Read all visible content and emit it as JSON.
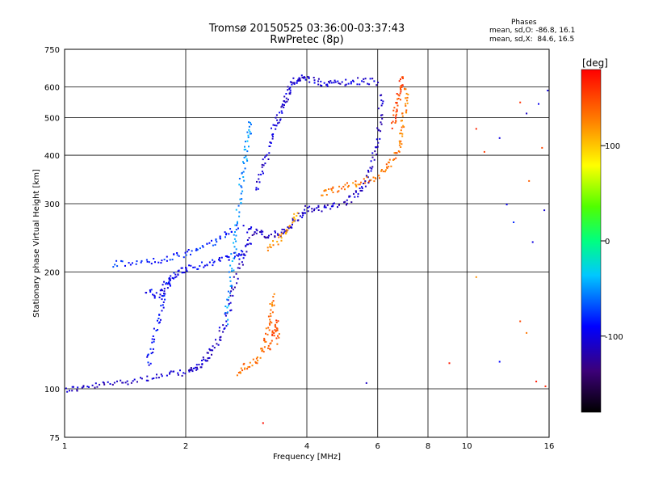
{
  "header": {
    "title": "Tromsø 20150525 03:36:00-03:37:43",
    "subtitle": "RwPretec (8p)"
  },
  "phase_stats": {
    "heading": "Phases",
    "line_o": "mean, sd,O: -86.8, 16.1",
    "line_x": "mean, sd,X:  84.6, 16.5"
  },
  "chart_data": {
    "type": "scatter",
    "xlabel": "Frequency [MHz]",
    "ylabel": "Stationary phase Virtual Height [km]",
    "x_scale": "log",
    "y_scale": "log",
    "xlim": [
      1,
      16
    ],
    "ylim": [
      75,
      750
    ],
    "x_ticks": [
      1,
      2,
      4,
      6,
      8,
      10,
      16
    ],
    "y_ticks": [
      75,
      100,
      200,
      300,
      400,
      500,
      600,
      750
    ],
    "x_tick_labels": [
      "1",
      "2",
      "4",
      "6",
      "8",
      "10",
      "16"
    ],
    "y_tick_labels": [
      "75",
      "100",
      "200",
      "300",
      "400",
      "500",
      "600",
      "750"
    ],
    "grid": true,
    "colorbar": {
      "label": "[deg]",
      "range": [
        -180,
        180
      ],
      "ticks": [
        100,
        0,
        -100
      ],
      "tick_labels": [
        "100",
        "0",
        "-100"
      ],
      "colormap": "rainbow"
    },
    "traces": [
      {
        "points": [
          [
            1.0,
            100
          ],
          [
            1.1,
            101
          ],
          [
            1.25,
            103
          ],
          [
            1.4,
            105
          ],
          [
            1.6,
            107
          ],
          [
            1.8,
            109
          ],
          [
            2.0,
            111
          ],
          [
            2.1,
            113
          ],
          [
            2.2,
            118
          ],
          [
            2.3,
            125
          ],
          [
            2.4,
            135
          ],
          [
            2.5,
            150
          ],
          [
            2.6,
            175
          ],
          [
            2.7,
            205
          ],
          [
            2.8,
            230
          ],
          [
            2.9,
            250
          ]
        ],
        "phase": -110
      },
      {
        "points": [
          [
            1.6,
            180
          ],
          [
            1.7,
            175
          ],
          [
            1.8,
            190
          ],
          [
            1.9,
            200
          ],
          [
            2.0,
            205
          ],
          [
            2.2,
            210
          ],
          [
            2.4,
            215
          ],
          [
            2.6,
            220
          ],
          [
            2.8,
            225
          ]
        ],
        "phase": -95
      },
      {
        "points": [
          [
            1.3,
            210
          ],
          [
            1.5,
            212
          ],
          [
            1.7,
            215
          ],
          [
            1.9,
            220
          ],
          [
            2.1,
            228
          ],
          [
            2.3,
            238
          ],
          [
            2.5,
            250
          ],
          [
            2.7,
            265
          ]
        ],
        "phase": -80
      },
      {
        "points": [
          [
            2.5,
            150
          ],
          [
            2.55,
            180
          ],
          [
            2.6,
            210
          ],
          [
            2.65,
            250
          ],
          [
            2.7,
            300
          ],
          [
            2.75,
            350
          ],
          [
            2.8,
            400
          ],
          [
            2.85,
            450
          ],
          [
            2.9,
            500
          ]
        ],
        "phase": -50
      },
      {
        "points": [
          [
            1.6,
            115
          ],
          [
            1.65,
            130
          ],
          [
            1.7,
            150
          ],
          [
            1.75,
            170
          ],
          [
            1.8,
            185
          ],
          [
            1.85,
            200
          ]
        ],
        "phase": -90
      },
      {
        "points": [
          [
            2.8,
            260
          ],
          [
            3.0,
            255
          ],
          [
            3.2,
            250
          ],
          [
            3.4,
            252
          ],
          [
            3.6,
            262
          ],
          [
            3.8,
            280
          ],
          [
            4.0,
            292
          ],
          [
            4.3,
            293
          ],
          [
            4.6,
            295
          ],
          [
            5.0,
            305
          ],
          [
            5.3,
            320
          ],
          [
            5.6,
            345
          ],
          [
            5.8,
            380
          ],
          [
            5.95,
            430
          ],
          [
            6.05,
            500
          ],
          [
            6.1,
            580
          ]
        ],
        "phase": -110
      },
      {
        "points": [
          [
            3.0,
            330
          ],
          [
            3.1,
            370
          ],
          [
            3.2,
            420
          ],
          [
            3.3,
            470
          ],
          [
            3.4,
            510
          ],
          [
            3.5,
            550
          ],
          [
            3.6,
            590
          ],
          [
            3.7,
            620
          ],
          [
            3.8,
            635
          ],
          [
            4.0,
            630
          ],
          [
            4.3,
            620
          ],
          [
            4.6,
            615
          ],
          [
            5.0,
            620
          ],
          [
            5.5,
            625
          ],
          [
            6.0,
            620
          ]
        ],
        "phase": -105
      },
      {
        "points": [
          [
            3.2,
            230
          ],
          [
            3.4,
            245
          ],
          [
            3.6,
            262
          ],
          [
            3.8,
            290
          ]
        ],
        "phase": 115
      },
      {
        "points": [
          [
            4.3,
            320
          ],
          [
            4.6,
            325
          ],
          [
            5.0,
            335
          ],
          [
            5.5,
            345
          ],
          [
            6.0,
            355
          ],
          [
            6.3,
            375
          ],
          [
            6.6,
            400
          ],
          [
            6.8,
            440
          ],
          [
            6.9,
            490
          ],
          [
            7.0,
            550
          ],
          [
            7.05,
            610
          ]
        ],
        "phase": 130
      },
      {
        "points": [
          [
            6.5,
            480
          ],
          [
            6.6,
            520
          ],
          [
            6.7,
            560
          ],
          [
            6.8,
            600
          ],
          [
            6.9,
            640
          ]
        ],
        "phase": 150
      },
      {
        "points": [
          [
            2.7,
            110
          ],
          [
            2.8,
            115
          ],
          [
            3.0,
            120
          ],
          [
            3.1,
            130
          ],
          [
            3.2,
            145
          ],
          [
            3.25,
            160
          ],
          [
            3.3,
            175
          ]
        ],
        "phase": 135
      },
      {
        "points": [
          [
            3.2,
            125
          ],
          [
            3.3,
            140
          ],
          [
            3.35,
            150
          ],
          [
            3.4,
            130
          ]
        ],
        "phase": 145
      }
    ],
    "scatter_points": [
      {
        "x": 10.5,
        "y": 470,
        "phase": 165
      },
      {
        "x": 11.0,
        "y": 410,
        "phase": 155
      },
      {
        "x": 12.0,
        "y": 445,
        "phase": -100
      },
      {
        "x": 12.5,
        "y": 300,
        "phase": -95
      },
      {
        "x": 13.0,
        "y": 270,
        "phase": -80
      },
      {
        "x": 13.5,
        "y": 550,
        "phase": 160
      },
      {
        "x": 14.0,
        "y": 515,
        "phase": -110
      },
      {
        "x": 14.2,
        "y": 345,
        "phase": 140
      },
      {
        "x": 14.5,
        "y": 240,
        "phase": -100
      },
      {
        "x": 15.0,
        "y": 545,
        "phase": -95
      },
      {
        "x": 15.3,
        "y": 420,
        "phase": 150
      },
      {
        "x": 15.5,
        "y": 290,
        "phase": -105
      },
      {
        "x": 15.8,
        "y": 590,
        "phase": -100
      },
      {
        "x": 14.8,
        "y": 105,
        "phase": 170
      },
      {
        "x": 15.6,
        "y": 102,
        "phase": 165
      },
      {
        "x": 12.0,
        "y": 118,
        "phase": -90
      },
      {
        "x": 9.0,
        "y": 117,
        "phase": 170
      },
      {
        "x": 5.6,
        "y": 104,
        "phase": -110
      },
      {
        "x": 3.1,
        "y": 82,
        "phase": 175
      },
      {
        "x": 10.5,
        "y": 195,
        "phase": 120
      },
      {
        "x": 13.5,
        "y": 150,
        "phase": 150
      },
      {
        "x": 14.0,
        "y": 140,
        "phase": 130
      }
    ]
  }
}
